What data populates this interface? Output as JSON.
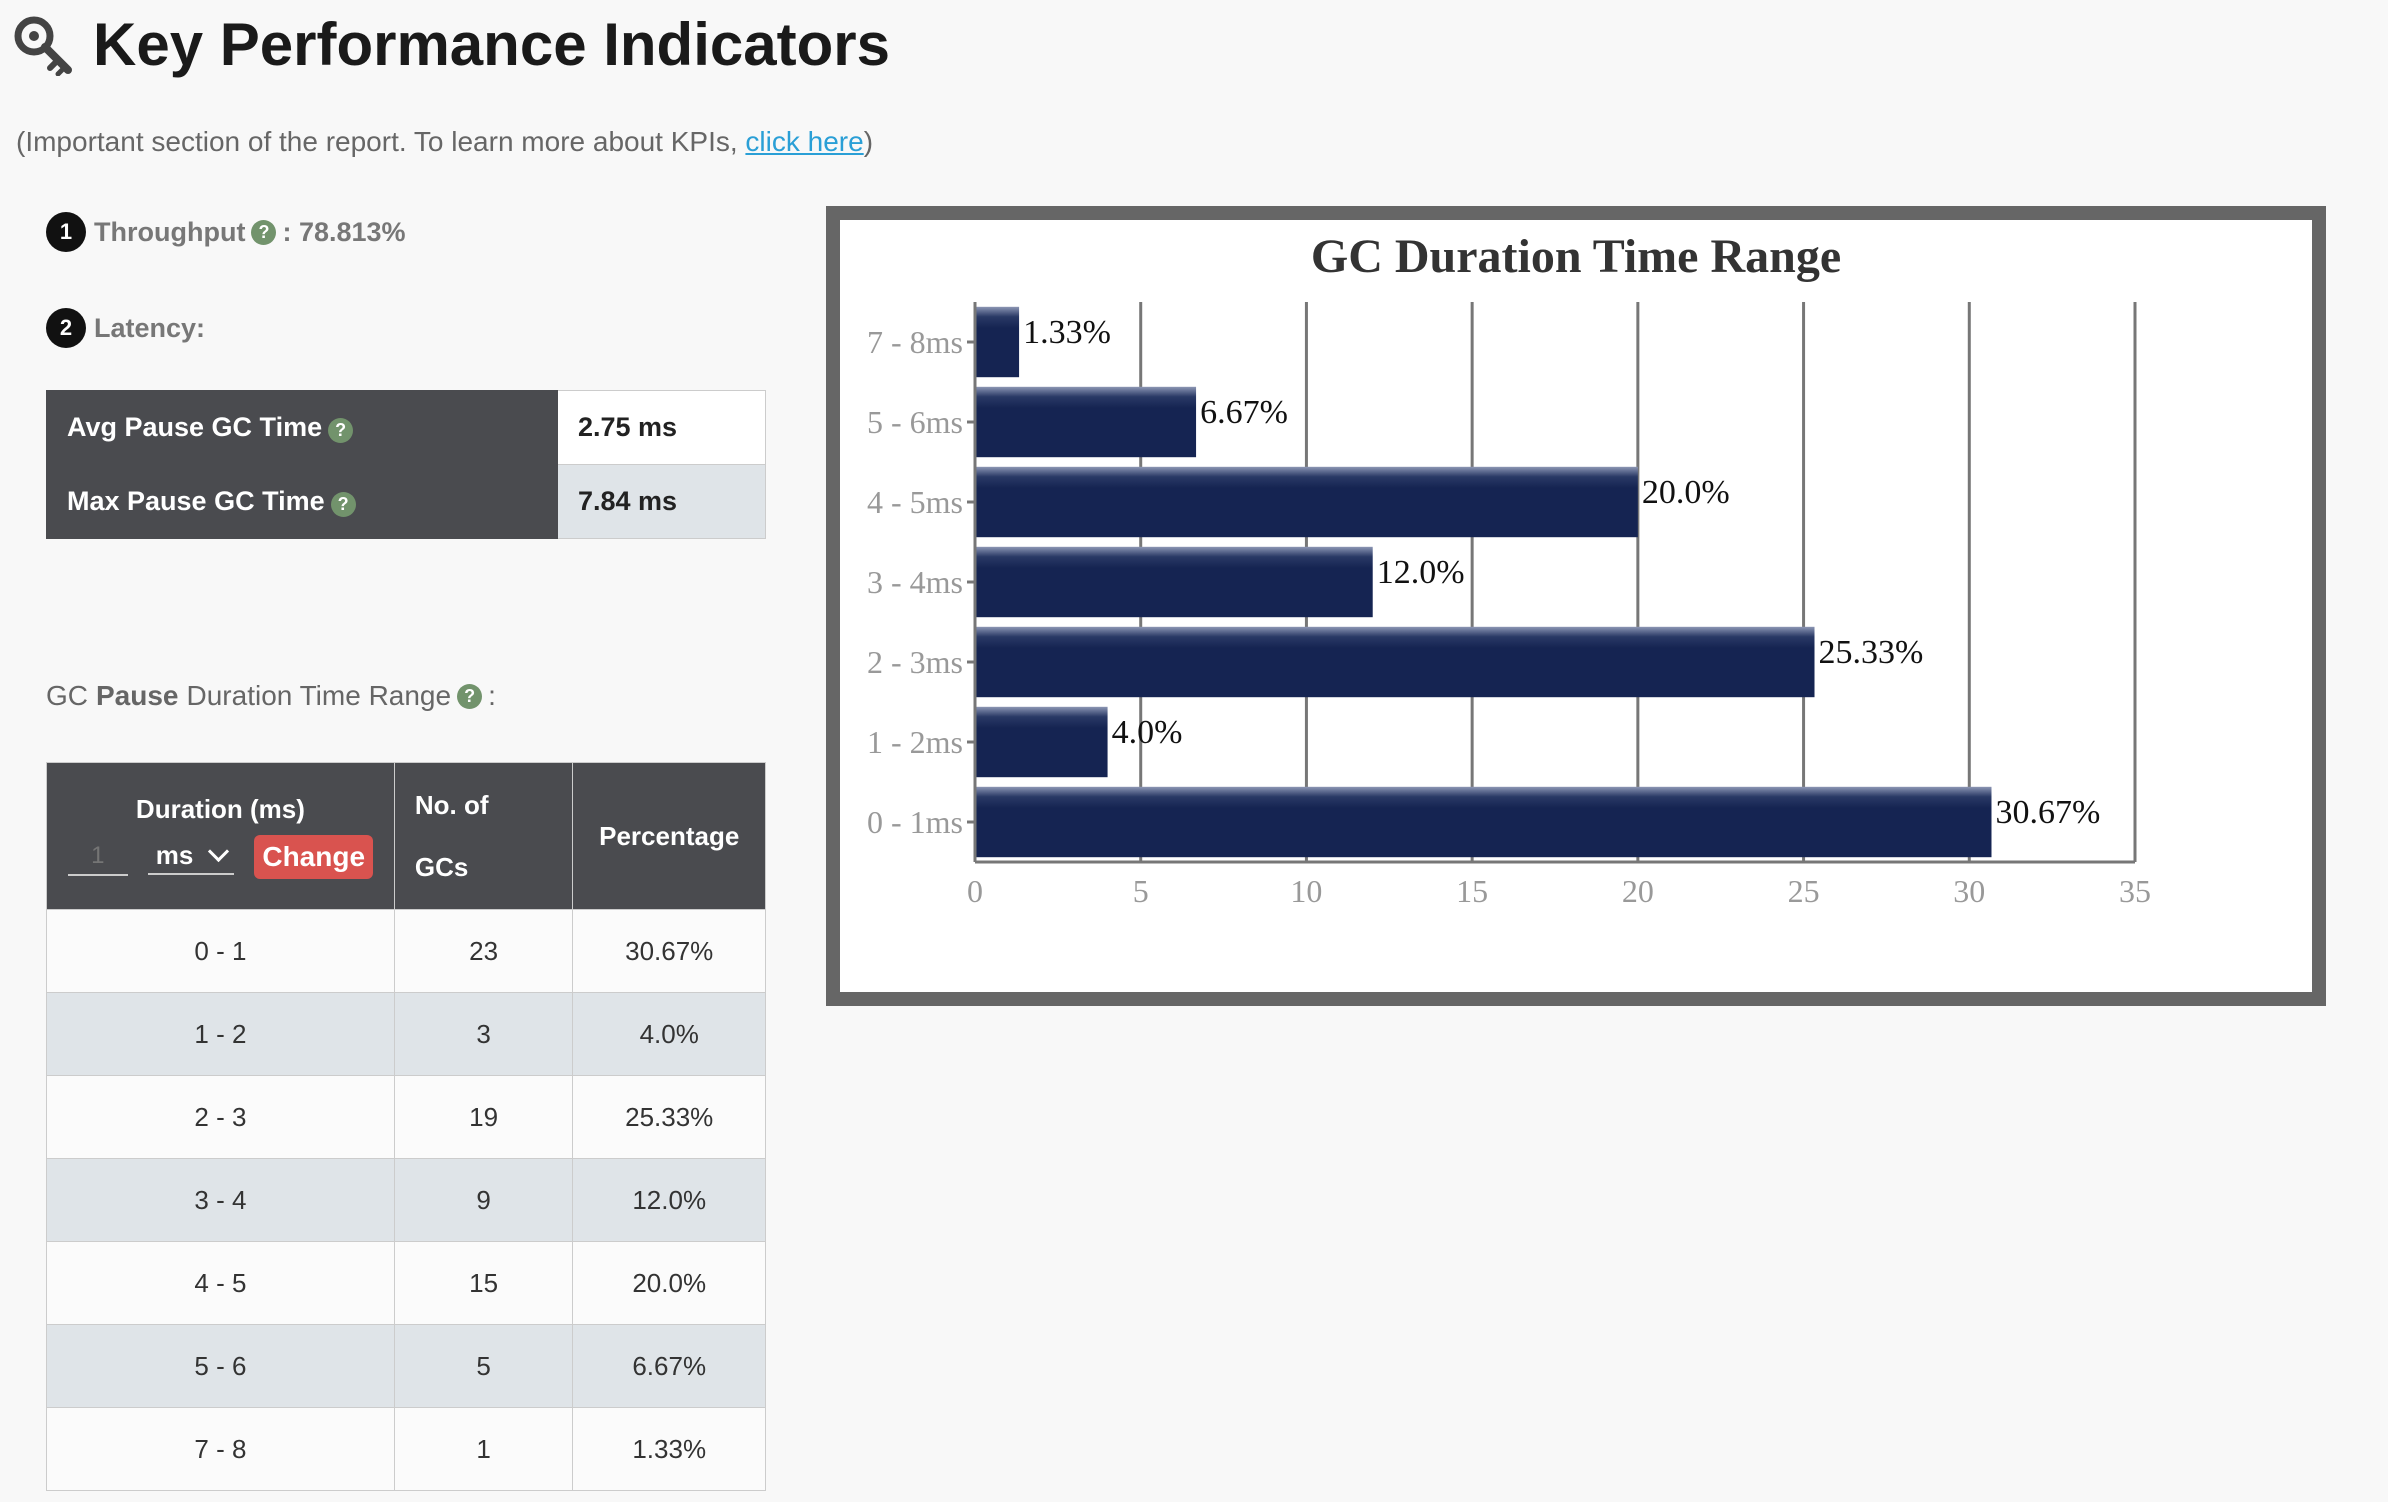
{
  "header": {
    "title": "Key Performance Indicators",
    "subtitle_prefix": "(Important section of the report. To learn more about KPIs, ",
    "subtitle_link": "click here",
    "subtitle_suffix": ")",
    "icon": "key-icon"
  },
  "kpis": {
    "throughput": {
      "number": "1",
      "label": "Throughput",
      "value": " : 78.813%"
    },
    "latency": {
      "number": "2",
      "label": "Latency:"
    }
  },
  "latency_table": [
    {
      "label": "Avg Pause GC Time",
      "value": "2.75 ms"
    },
    {
      "label": "Max Pause GC Time",
      "value": "7.84 ms"
    }
  ],
  "range_heading": {
    "prefix": "GC",
    "bold": "Pause",
    "suffix": "Duration Time Range",
    "colon": ":"
  },
  "duration_table": {
    "headers": {
      "duration": "Duration (ms)",
      "gcs_line1": "No. of",
      "gcs_line2": "GCs",
      "percentage": "Percentage"
    },
    "controls": {
      "input_placeholder": "1",
      "unit": "ms",
      "change_label": "Change"
    },
    "rows": [
      {
        "range": "0 - 1",
        "count": "23",
        "pct": "30.67%"
      },
      {
        "range": "1 - 2",
        "count": "3",
        "pct": "4.0%"
      },
      {
        "range": "2 - 3",
        "count": "19",
        "pct": "25.33%"
      },
      {
        "range": "3 - 4",
        "count": "9",
        "pct": "12.0%"
      },
      {
        "range": "4 - 5",
        "count": "15",
        "pct": "20.0%"
      },
      {
        "range": "5 - 6",
        "count": "5",
        "pct": "6.67%"
      },
      {
        "range": "7 - 8",
        "count": "1",
        "pct": "1.33%"
      }
    ]
  },
  "chart_data": {
    "type": "bar",
    "orientation": "horizontal",
    "title": "GC Duration Time Range",
    "categories": [
      "7 - 8ms",
      "5 - 6ms",
      "4 - 5ms",
      "3 - 4ms",
      "2 - 3ms",
      "1 - 2ms",
      "0 - 1ms"
    ],
    "values": [
      1.33,
      6.67,
      20.0,
      12.0,
      25.33,
      4.0,
      30.67
    ],
    "labels": [
      "1.33%",
      "6.67%",
      "20.0%",
      "12.0%",
      "25.33%",
      "4.0%",
      "30.67%"
    ],
    "xticks": [
      "0",
      "5",
      "10",
      "15",
      "20",
      "25",
      "30",
      "35"
    ],
    "xlim": [
      0,
      35
    ],
    "xlabel": "",
    "ylabel": "",
    "grid": true,
    "bar_color": "#152452"
  }
}
